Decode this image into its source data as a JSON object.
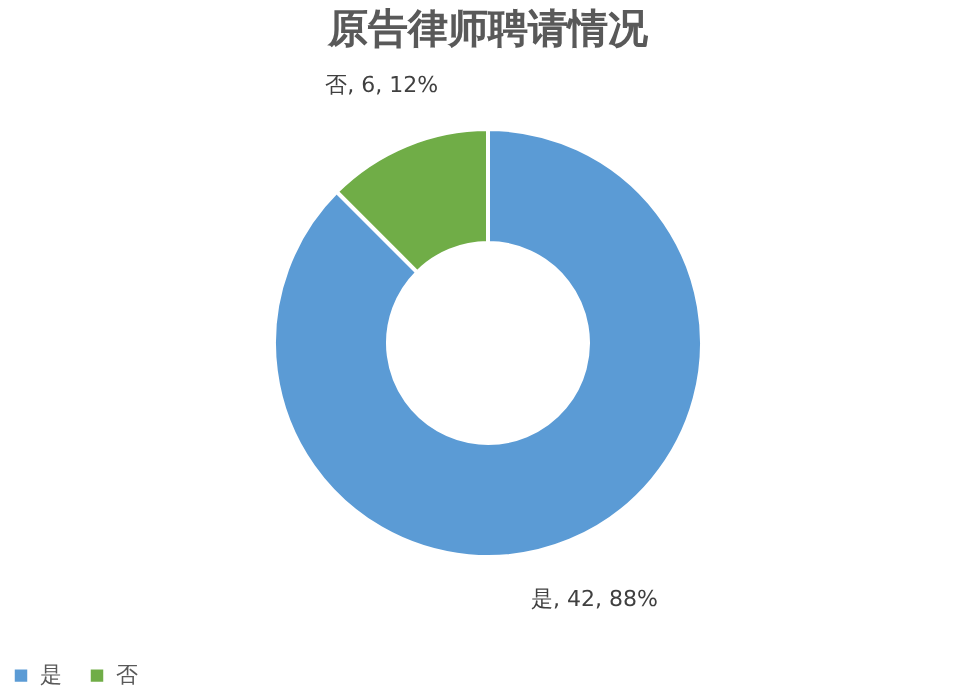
{
  "chart_data": {
    "type": "donut",
    "title": "原告律师聘请情况",
    "categories": [
      "是",
      "否"
    ],
    "values": [
      42,
      6
    ],
    "colors": [
      "#5b9bd5",
      "#70ad47"
    ],
    "value_labels": [
      "是, 42, 88%",
      "否, 6, 12%"
    ],
    "legend": "bottom"
  }
}
